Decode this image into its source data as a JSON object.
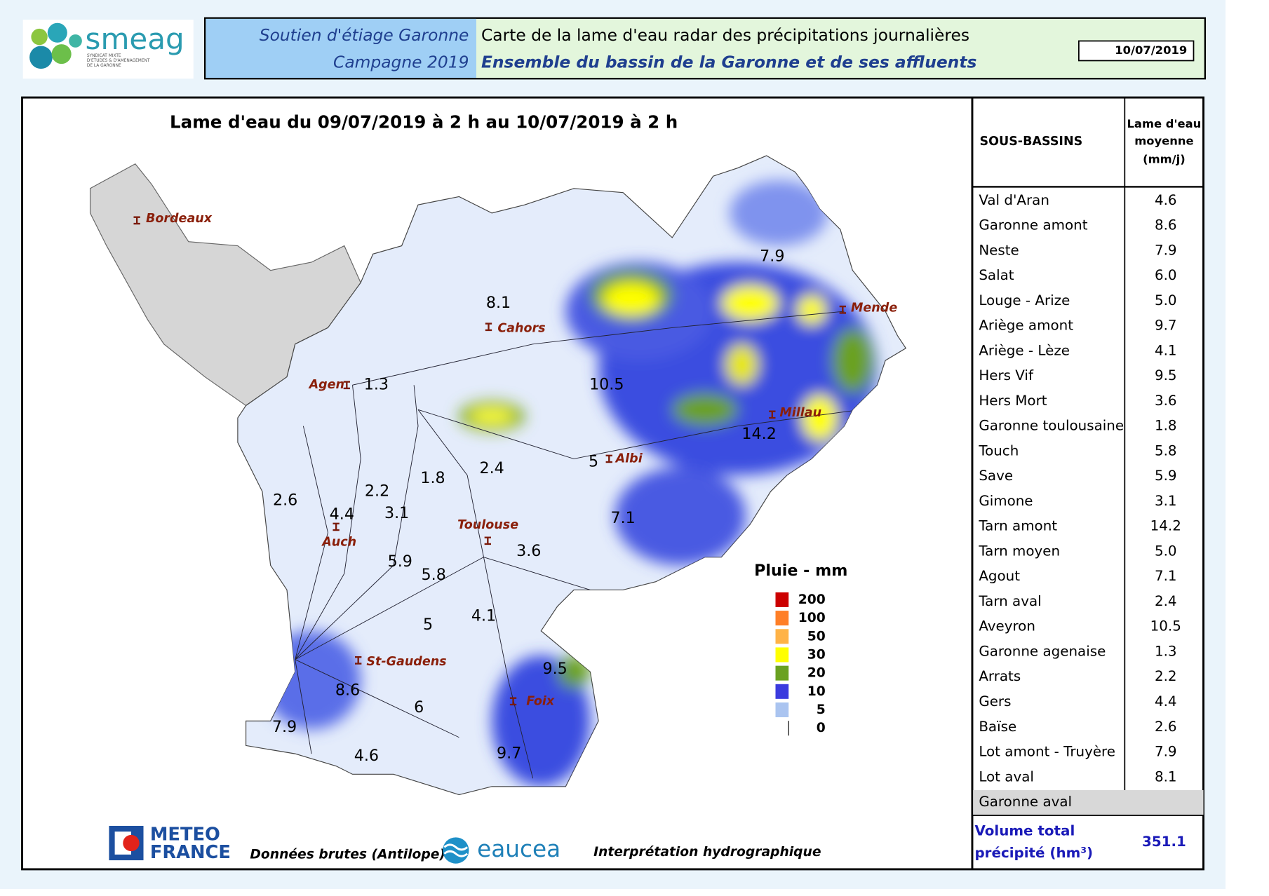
{
  "header": {
    "logo": "smeag",
    "logo_subtitle": [
      "SYNDICAT MIXTE",
      "D'ETUDES & D'AMENAGEMENT",
      "DE LA GARONNE"
    ],
    "title_left": [
      "Soutien d'étiage Garonne",
      "Campagne 2019"
    ],
    "title_right": [
      "Carte de la lame d'eau radar des précipitations journalières",
      "Ensemble du bassin de la Garonne et de ses affluents"
    ],
    "date": "10/07/2019"
  },
  "map": {
    "title": "Lame d'eau du 09/07/2019 à 2 h au 10/07/2019 à 2 h",
    "cities": [
      "Bordeaux",
      "Cahors",
      "Agen",
      "Mende",
      "Millau",
      "Albi",
      "Toulouse",
      "Auch",
      "St-Gaudens",
      "Foix"
    ],
    "basin_values": [
      7.9,
      8.1,
      1.3,
      10.5,
      14.2,
      5,
      2.4,
      1.8,
      2.2,
      2.6,
      4.4,
      3.1,
      7.1,
      3.6,
      5.9,
      5.8,
      4.1,
      5,
      9.5,
      8.6,
      6,
      7.9,
      4.6,
      9.7
    ],
    "legend": {
      "title": "Pluie - mm",
      "items": [
        {
          "label": 200,
          "color": "#cc0000"
        },
        {
          "label": 100,
          "color": "#ff7f27"
        },
        {
          "label": 50,
          "color": "#ffb347"
        },
        {
          "label": 30,
          "color": "#ffff00"
        },
        {
          "label": 20,
          "color": "#6aa121"
        },
        {
          "label": 10,
          "color": "#3b3bde"
        },
        {
          "label": 5,
          "color": "#aac4f0"
        },
        {
          "label": 0,
          "color": "#ffffff"
        }
      ]
    }
  },
  "table": {
    "headers": [
      "SOUS-BASSINS",
      [
        "Lame d'eau",
        "moyenne",
        "(mm/j)"
      ]
    ],
    "rows": [
      [
        "Val d'Aran",
        "4.6"
      ],
      [
        "Garonne amont",
        "8.6"
      ],
      [
        "Neste",
        "7.9"
      ],
      [
        "Salat",
        "6.0"
      ],
      [
        "Louge - Arize",
        "5.0"
      ],
      [
        "Ariège amont",
        "9.7"
      ],
      [
        "Ariège - Lèze",
        "4.1"
      ],
      [
        "Hers Vif",
        "9.5"
      ],
      [
        "Hers Mort",
        "3.6"
      ],
      [
        "Garonne toulousaine",
        "1.8"
      ],
      [
        "Touch",
        "5.8"
      ],
      [
        "Save",
        "5.9"
      ],
      [
        "Gimone",
        "3.1"
      ],
      [
        "Tarn amont",
        "14.2"
      ],
      [
        "Tarn moyen",
        "5.0"
      ],
      [
        "Agout",
        "7.1"
      ],
      [
        "Tarn aval",
        "2.4"
      ],
      [
        "Aveyron",
        "10.5"
      ],
      [
        "Garonne agenaise",
        "1.3"
      ],
      [
        "Arrats",
        "2.2"
      ],
      [
        "Gers",
        "4.4"
      ],
      [
        "Baïse",
        "2.6"
      ],
      [
        "Lot amont - Truyère",
        "7.9"
      ],
      [
        "Lot aval",
        "8.1"
      ],
      [
        "Garonne aval"
      ]
    ],
    "total": {
      "label": [
        "Volume total",
        "précipité (hm³)"
      ],
      "value": "351.1"
    }
  },
  "footer": {
    "meteo": [
      "METEO",
      "FRANCE"
    ],
    "source": "Données brutes (Antilope)",
    "eaucea": "eaucea",
    "interpretation": "Interprétation hydrographique"
  }
}
